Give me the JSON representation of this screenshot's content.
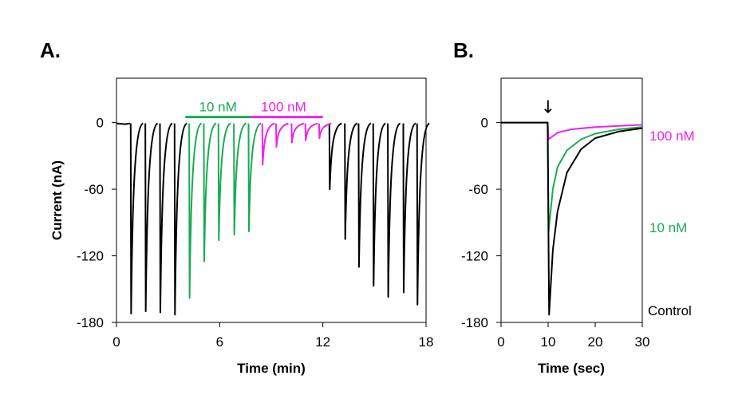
{
  "colors": {
    "control": "#000000",
    "nM10": "#1aaa55",
    "nM100": "#ee22ee"
  },
  "panels": [
    {
      "label": "A."
    },
    {
      "label": "B."
    }
  ],
  "chart_data": [
    {
      "type": "line",
      "title": "",
      "xlabel": "Time (min)",
      "ylabel": "Current (nA)",
      "xlim": [
        0,
        18
      ],
      "ylim": [
        -180,
        40
      ],
      "xticks": [
        0,
        6,
        12,
        18
      ],
      "yticks": [
        0,
        -60,
        -120,
        -180
      ],
      "annotations": [
        {
          "text": "10 nM",
          "x_start": 4.0,
          "x_end": 7.8,
          "color": "#1aaa55"
        },
        {
          "text": "100 nM",
          "x_start": 7.8,
          "x_end": 12.0,
          "color": "#ee22ee"
        }
      ],
      "series": [
        {
          "color": "#000000",
          "x": [
            0.85,
            1.7,
            2.55,
            3.4,
            12.4,
            13.3,
            14.1,
            14.95,
            15.8,
            16.7,
            17.5
          ],
          "y": [
            -172,
            -170,
            -171,
            -173,
            -60,
            -105,
            -130,
            -147,
            -157,
            -153,
            -164
          ]
        },
        {
          "color": "#1aaa55",
          "x": [
            4.25,
            5.1,
            5.95,
            6.85,
            7.7
          ],
          "y": [
            -158,
            -125,
            -106,
            -101,
            -98
          ]
        },
        {
          "color": "#ee22ee",
          "x": [
            8.5,
            9.3,
            10.2,
            11.0,
            11.8
          ],
          "y": [
            -38,
            -22,
            -18,
            -16,
            -14
          ]
        }
      ]
    },
    {
      "type": "line",
      "title": "",
      "xlabel": "Time (sec)",
      "ylabel": "",
      "xlim": [
        0,
        30
      ],
      "ylim": [
        -180,
        40
      ],
      "xticks": [
        0,
        10,
        20,
        30
      ],
      "yticks": [
        0,
        -60,
        -120,
        -180
      ],
      "marker": {
        "symbol": "↓",
        "x": 10
      },
      "series": [
        {
          "name": "100 nM",
          "color": "#ee22ee",
          "x": [
            0,
            9.9,
            10.1,
            12,
            15,
            20,
            25,
            30
          ],
          "y": [
            0,
            0,
            -15,
            -9,
            -6,
            -4,
            -3,
            -2
          ]
        },
        {
          "name": "10 nM",
          "color": "#1aaa55",
          "x": [
            0,
            9.9,
            10.1,
            11,
            12,
            14,
            17,
            20,
            25,
            30
          ],
          "y": [
            0,
            0,
            -98,
            -60,
            -40,
            -25,
            -15,
            -10,
            -6,
            -4
          ]
        },
        {
          "name": "Control",
          "color": "#000000",
          "x": [
            0,
            9.9,
            10.2,
            11,
            12,
            14,
            17,
            20,
            25,
            30
          ],
          "y": [
            0,
            0,
            -173,
            -115,
            -80,
            -45,
            -24,
            -14,
            -8,
            -5
          ]
        }
      ]
    }
  ]
}
